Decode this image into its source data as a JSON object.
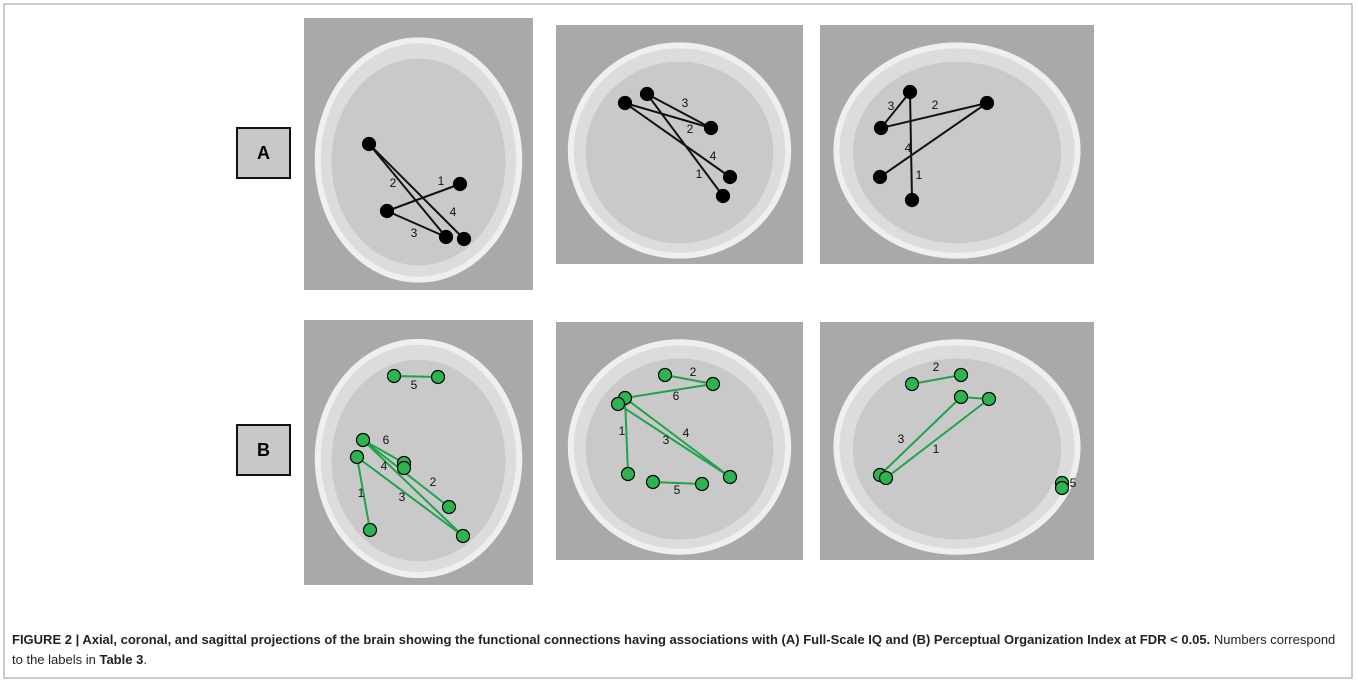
{
  "panels": [
    {
      "label": "A",
      "views": [
        {
          "edge_labels": [
            "1",
            "2",
            "3",
            "4"
          ]
        },
        {
          "edge_labels": [
            "3",
            "2",
            "4",
            "1"
          ]
        },
        {
          "edge_labels": [
            "3",
            "2",
            "4",
            "1"
          ]
        }
      ]
    },
    {
      "label": "B",
      "views": [
        {
          "edge_labels": [
            "5",
            "6",
            "4",
            "2",
            "1",
            "3"
          ]
        },
        {
          "edge_labels": [
            "2",
            "6",
            "1",
            "3",
            "4",
            "5"
          ]
        },
        {
          "edge_labels": [
            "2",
            "3",
            "1",
            "5"
          ]
        }
      ]
    }
  ],
  "caption": {
    "title": "FIGURE 2 | Axial, coronal, and sagittal projections of the brain showing the functional connections having associations with (A) Full-Scale IQ and (B) Perceptual Organization Index at FDR < 0.05.",
    "text": "Numbers correspond to the labels in",
    "table_ref": "Table 3",
    "end": "."
  }
}
